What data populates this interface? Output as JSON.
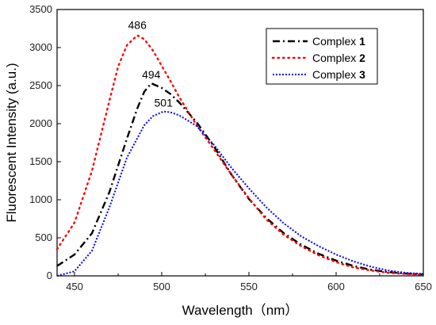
{
  "chart_data": {
    "type": "line",
    "title": "",
    "xlabel": "Wavelength（nm）",
    "ylabel": "Fluorescent Intensity (a.u.)",
    "xlim": [
      440,
      650
    ],
    "ylim": [
      0,
      3500
    ],
    "xticks": [
      450,
      500,
      550,
      600,
      650
    ],
    "yticks": [
      0,
      500,
      1000,
      1500,
      2000,
      2500,
      3000,
      3500
    ],
    "grid": false,
    "legend_position": "top-right",
    "series": [
      {
        "name": "Complex 1",
        "legend_prefix": "Complex ",
        "legend_number": "1",
        "color": "#000000",
        "style": "dash-dot",
        "x": [
          440,
          450,
          460,
          470,
          480,
          486,
          490,
          494,
          500,
          505,
          510,
          520,
          530,
          540,
          550,
          560,
          570,
          580,
          590,
          600,
          610,
          620,
          630,
          640,
          650
        ],
        "y": [
          130,
          280,
          560,
          1100,
          1800,
          2200,
          2420,
          2530,
          2470,
          2390,
          2280,
          2020,
          1700,
          1330,
          1010,
          760,
          560,
          410,
          290,
          200,
          130,
          80,
          50,
          30,
          20
        ]
      },
      {
        "name": "Complex 2",
        "legend_prefix": "Complex ",
        "legend_number": "2",
        "color": "#ff0000",
        "style": "dotted",
        "x": [
          440,
          450,
          460,
          470,
          475,
          480,
          486,
          490,
          495,
          500,
          505,
          510,
          520,
          530,
          540,
          550,
          560,
          570,
          580,
          590,
          600,
          610,
          620,
          630,
          640,
          650
        ],
        "y": [
          350,
          700,
          1380,
          2300,
          2750,
          3030,
          3160,
          3110,
          2960,
          2760,
          2560,
          2350,
          1980,
          1660,
          1330,
          1020,
          740,
          540,
          390,
          270,
          180,
          110,
          70,
          40,
          25,
          15
        ]
      },
      {
        "name": "Complex 3",
        "legend_prefix": "Complex ",
        "legend_number": "3",
        "color": "#0000ff",
        "style": "dotted-fine",
        "x": [
          440,
          450,
          460,
          470,
          480,
          490,
          495,
          501,
          505,
          510,
          520,
          530,
          540,
          550,
          560,
          570,
          580,
          590,
          600,
          610,
          620,
          630,
          640,
          650
        ],
        "y": [
          0,
          60,
          330,
          900,
          1550,
          1980,
          2100,
          2160,
          2150,
          2110,
          1970,
          1720,
          1420,
          1150,
          900,
          690,
          520,
          390,
          280,
          190,
          120,
          70,
          40,
          25
        ]
      }
    ],
    "annotations": [
      {
        "text": "486",
        "x": 486,
        "y": 3160
      },
      {
        "text": "494",
        "x": 494,
        "y": 2530
      },
      {
        "text": "501",
        "x": 501,
        "y": 2160
      }
    ]
  }
}
